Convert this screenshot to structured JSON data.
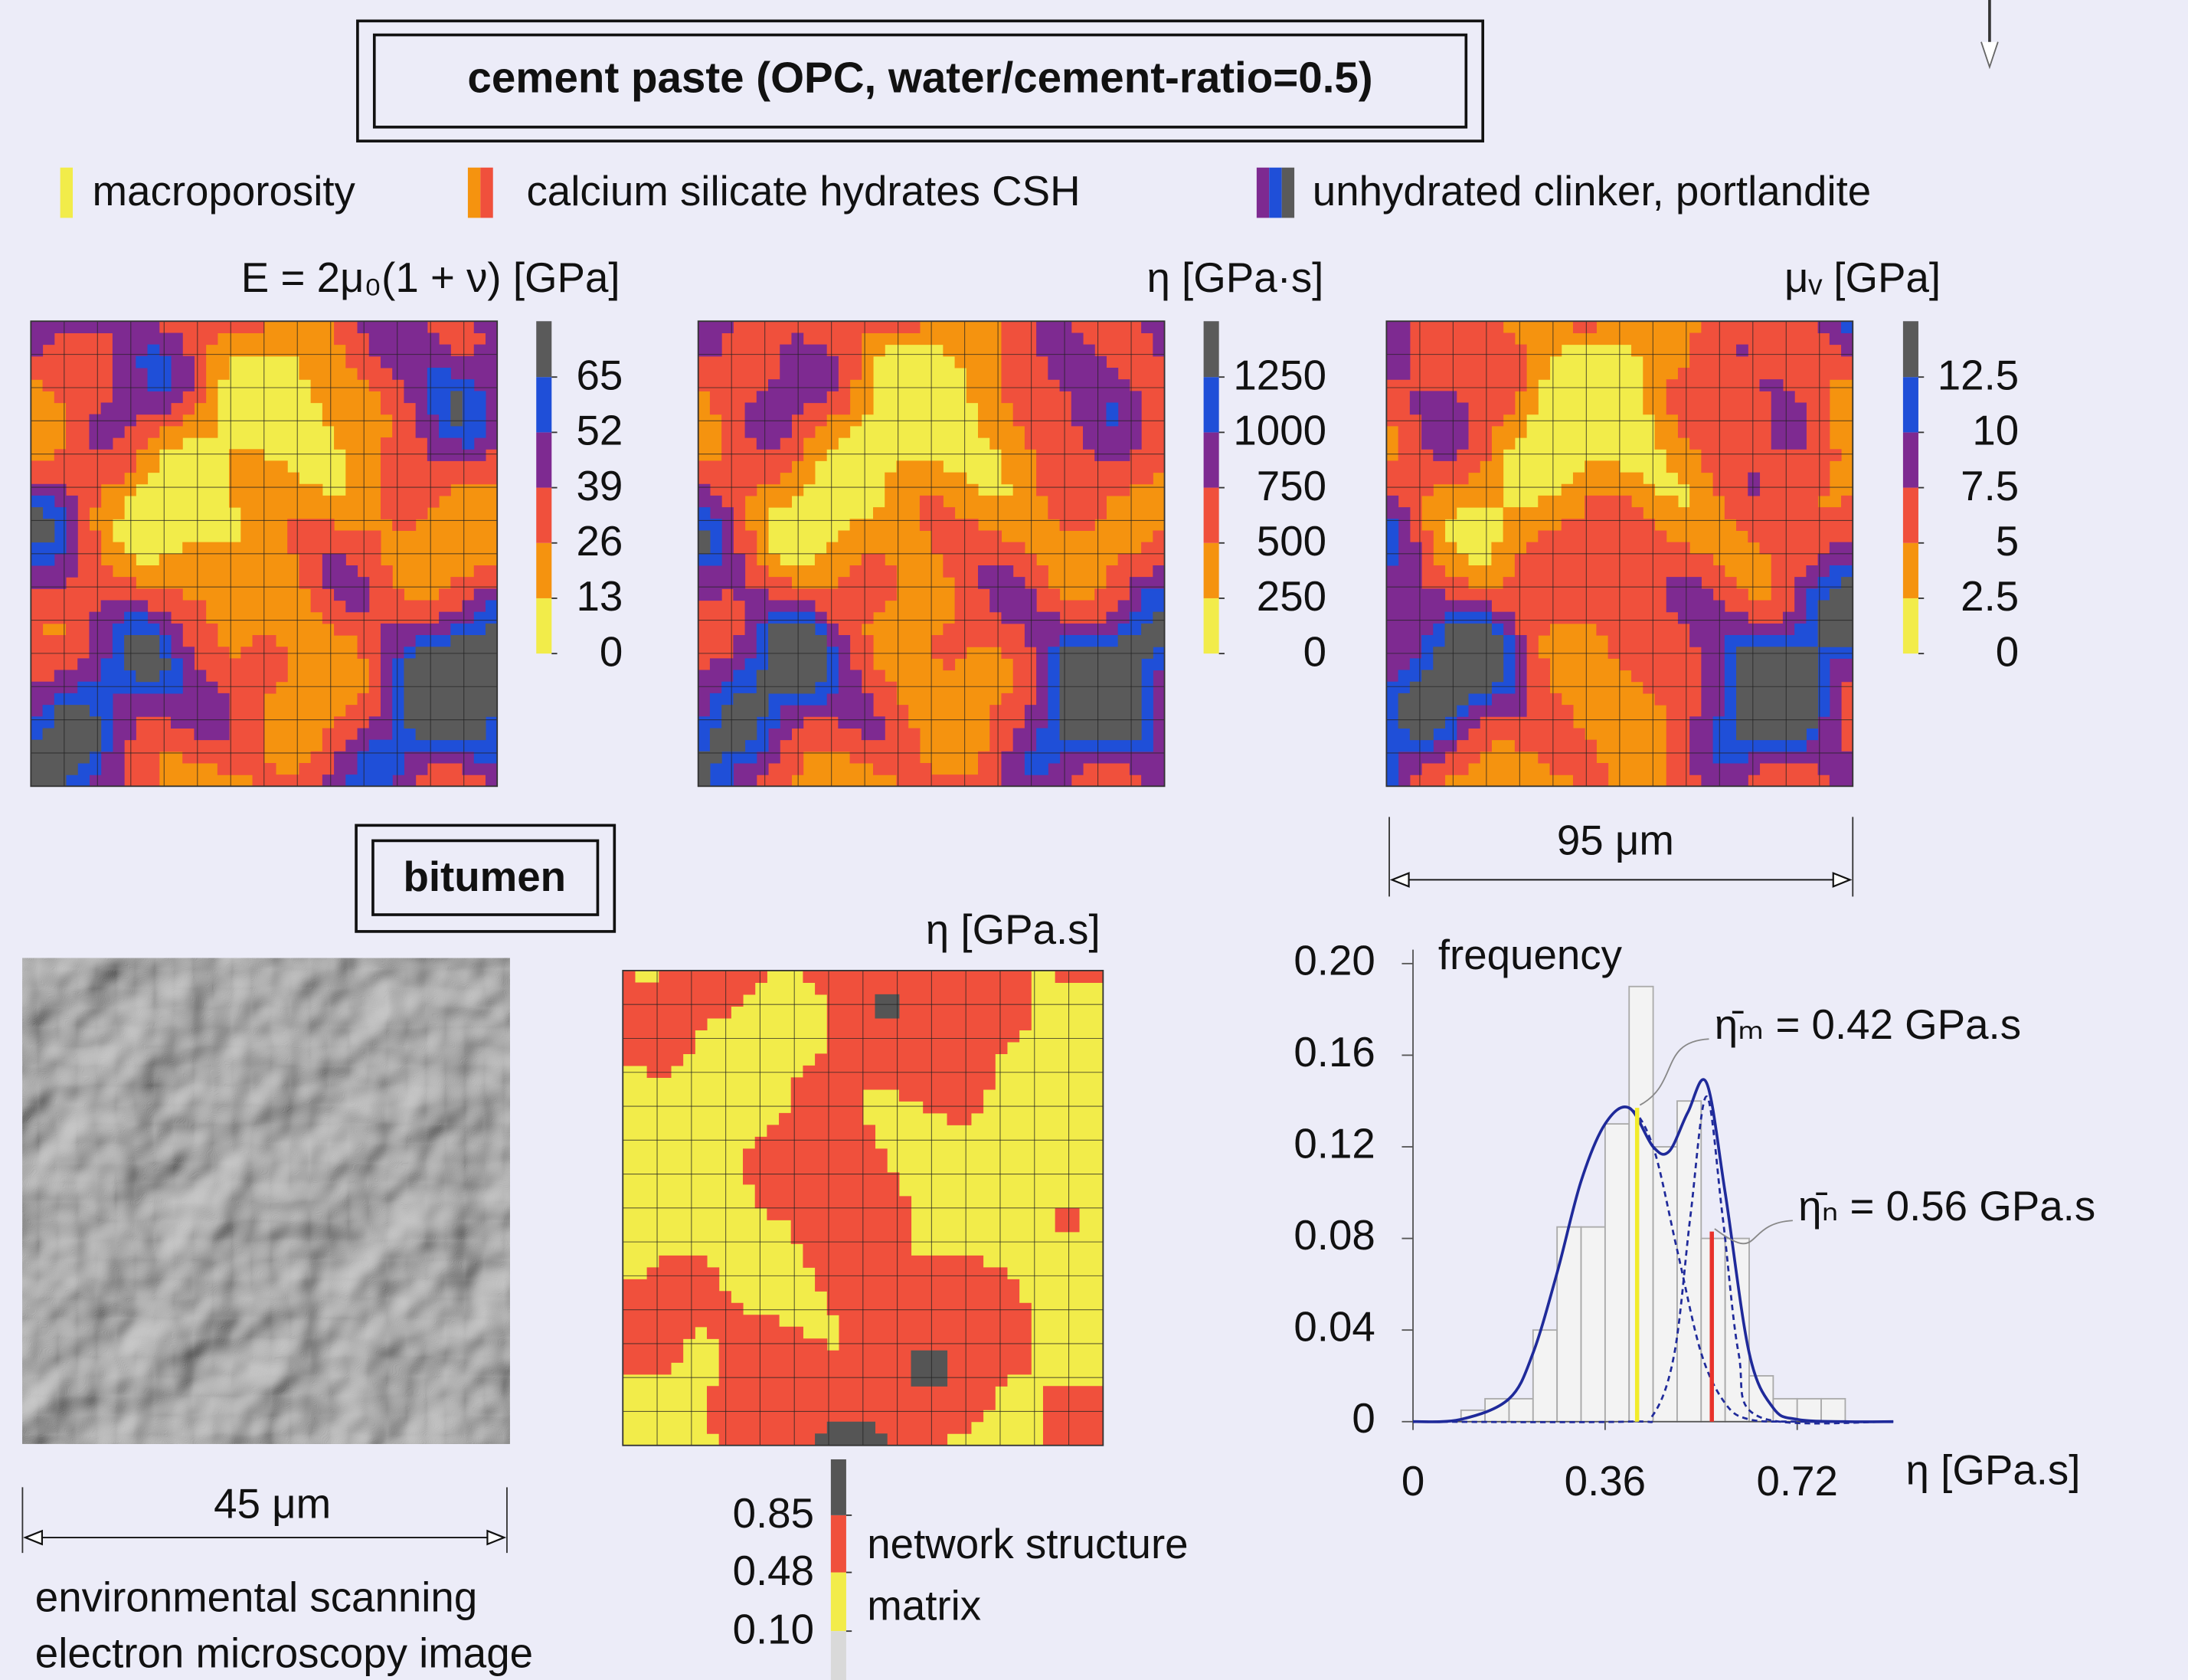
{
  "header": {
    "title": "cement paste (OPC, water/cement-ratio=0.5)"
  },
  "legend": [
    {
      "label": "macroporosity",
      "colors": [
        "#f2ec4a"
      ]
    },
    {
      "label": "calcium silicate hydrates CSH",
      "colors": [
        "#f5930f",
        "#f0503c"
      ]
    },
    {
      "label": "unhydrated clinker, portlandite",
      "colors": [
        "#7e2a91",
        "#1f4fd8",
        "#5a5a5a"
      ]
    }
  ],
  "maps": [
    {
      "title": "E = 2μ₀(1 + ν) [GPa]",
      "ticks": [
        0,
        13,
        26,
        39,
        52,
        65
      ],
      "colors": [
        "#f2ec4a",
        "#f5930f",
        "#f0503c",
        "#7e2a91",
        "#1f4fd8"
      ],
      "over": "#5a5a5a"
    },
    {
      "title": "η [GPa·s]",
      "ticks": [
        0,
        250,
        500,
        750,
        1000,
        1250
      ],
      "colors": [
        "#f2ec4a",
        "#f5930f",
        "#f0503c",
        "#7e2a91",
        "#1f4fd8"
      ],
      "over": "#5a5a5a"
    },
    {
      "title": "μᵥ [GPa]",
      "ticks": [
        0,
        2.5,
        5,
        7.5,
        10,
        12.5
      ],
      "colors": [
        "#f2ec4a",
        "#f5930f",
        "#f0503c",
        "#7e2a91",
        "#1f4fd8"
      ],
      "over": "#5a5a5a"
    }
  ],
  "cement_scale": "95 μm",
  "bitumen": {
    "title": "bitumen",
    "sem_scale": "45 μm",
    "sem_caption": [
      "environmental scanning",
      "electron microscopy image"
    ],
    "map": {
      "title": "η [GPa.s]",
      "ticks": [
        {
          "value": 0.1,
          "label": "0.10"
        },
        0.48,
        0.85
      ],
      "colors": [
        "#f2ec4a",
        "#f0503c"
      ],
      "over": "#555555",
      "under": "#d9d9d9",
      "labels": [
        "matrix",
        "network structure"
      ]
    }
  },
  "chart_data": {
    "type": "histogram",
    "ylabel": "frequency",
    "xlabel": "η [GPa.s]",
    "bins": [
      0.09,
      0.135,
      0.18,
      0.225,
      0.27,
      0.315,
      0.36,
      0.405,
      0.45,
      0.495,
      0.54,
      0.585,
      0.63,
      0.675,
      0.72,
      0.765,
      0.81
    ],
    "values": [
      0.005,
      0.01,
      0.01,
      0.04,
      0.085,
      0.085,
      0.13,
      0.19,
      0.12,
      0.14,
      0.08,
      0.08,
      0.02,
      0.01,
      0.01,
      0.01
    ],
    "color": "#f3f3f3",
    "xlim": [
      0,
      0.9
    ],
    "ylim": [
      0,
      0.2
    ],
    "xticks": [
      0,
      0.36,
      0.72
    ],
    "yticks": [
      0,
      0.04,
      0.08,
      0.12,
      0.16,
      {
        "value": 0.2,
        "label": "0.20"
      }
    ],
    "series": [
      {
        "type": "line",
        "color": "#1f2a9a",
        "dashed": false,
        "x": [
          0,
          0.09,
          0.18,
          0.225,
          0.27,
          0.315,
          0.36,
          0.405,
          0.45,
          0.48,
          0.515,
          0.55,
          0.585,
          0.63,
          0.675,
          0.72,
          0.81,
          0.9
        ],
        "values": [
          0,
          0.001,
          0.01,
          0.03,
          0.065,
          0.105,
          0.13,
          0.137,
          0.12,
          0.118,
          0.135,
          0.148,
          0.1,
          0.03,
          0.006,
          0.001,
          0,
          0
        ]
      },
      {
        "type": "line",
        "color": "#1f2a9a",
        "dashed": true,
        "x": [
          0,
          0.09,
          0.18,
          0.225,
          0.27,
          0.315,
          0.36,
          0.405,
          0.45,
          0.495,
          0.54,
          0.585,
          0.63,
          0.72,
          0.9
        ],
        "values": [
          0,
          0.001,
          0.01,
          0.03,
          0.065,
          0.105,
          0.13,
          0.137,
          0.12,
          0.075,
          0.03,
          0.008,
          0.001,
          0,
          0
        ]
      },
      {
        "type": "line",
        "color": "#1f2a9a",
        "dashed": true,
        "x": [
          0,
          0.4,
          0.45,
          0.49,
          0.52,
          0.55,
          0.58,
          0.61,
          0.65,
          0.9
        ],
        "values": [
          0,
          0,
          0.003,
          0.03,
          0.09,
          0.142,
          0.09,
          0.03,
          0.002,
          0
        ]
      }
    ],
    "markers": [
      {
        "x": 0.42,
        "height": 0.137,
        "color": "#f2ec2a",
        "label": "η̄ₘ = 0.42 GPa.s"
      },
      {
        "x": 0.56,
        "height": 0.083,
        "color": "#e8322a",
        "label": "η̄ₙ = 0.56 GPa.s"
      }
    ]
  }
}
